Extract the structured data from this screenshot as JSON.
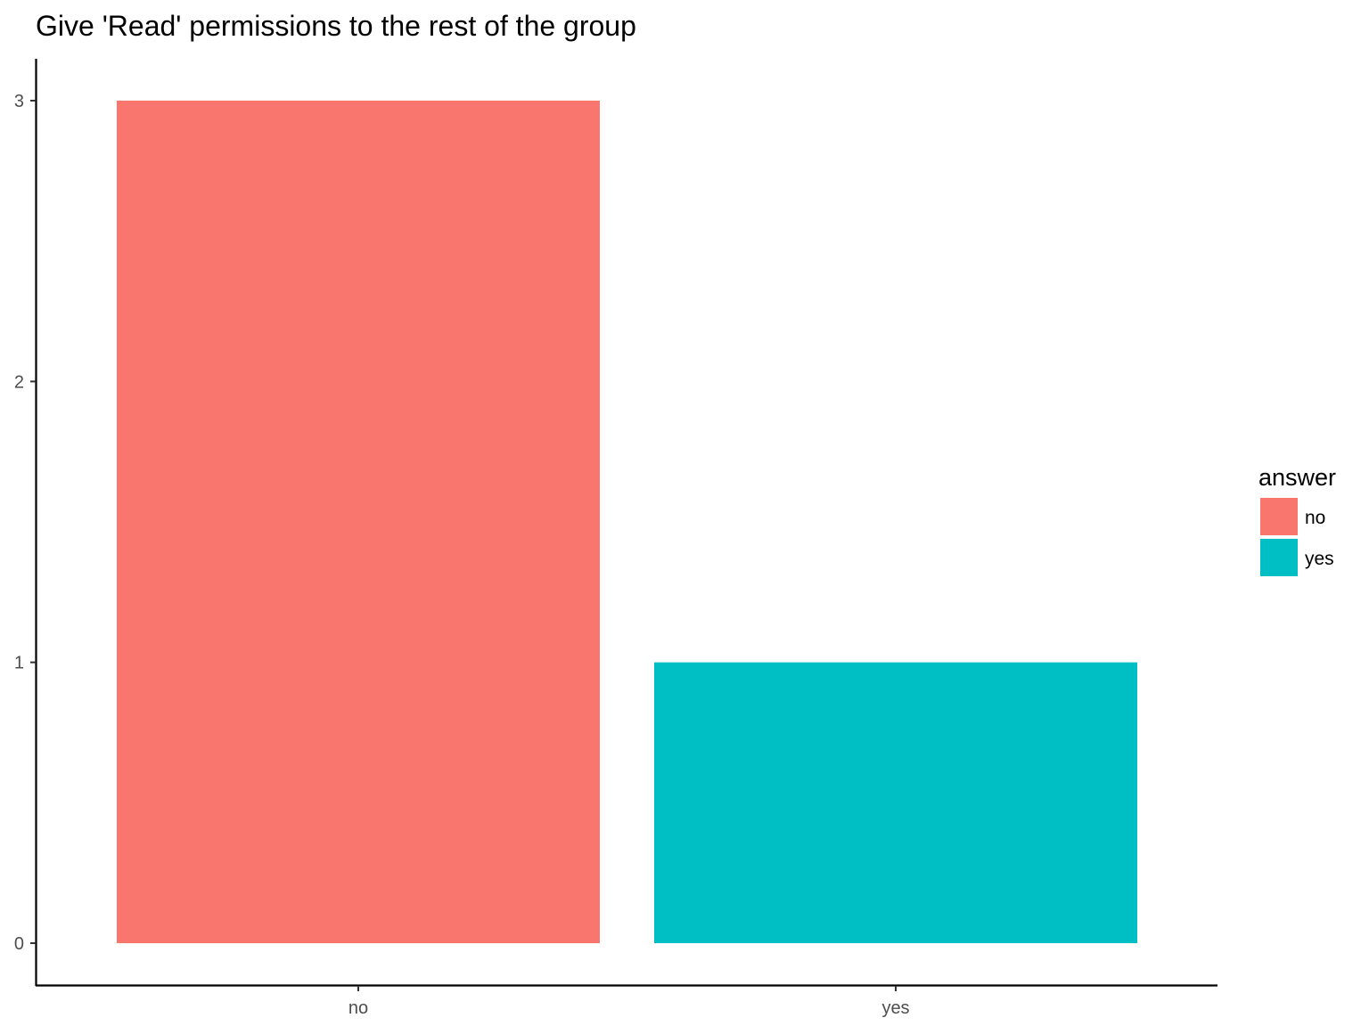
{
  "chart_data": {
    "type": "bar",
    "title": "Give 'Read' permissions to the rest of the group",
    "xlabel": "",
    "ylabel": "",
    "categories": [
      "no",
      "yes"
    ],
    "values": [
      3,
      1
    ],
    "ylim": [
      0,
      3
    ],
    "y_ticks": [
      "0",
      "1",
      "2",
      "3"
    ],
    "grid": false,
    "legend": {
      "title": "answer",
      "position": "right",
      "entries": [
        {
          "label": "no",
          "color": "#F8766D"
        },
        {
          "label": "yes",
          "color": "#00BFC4"
        }
      ]
    },
    "colors": {
      "no": "#F8766D",
      "yes": "#00BFC4"
    }
  }
}
